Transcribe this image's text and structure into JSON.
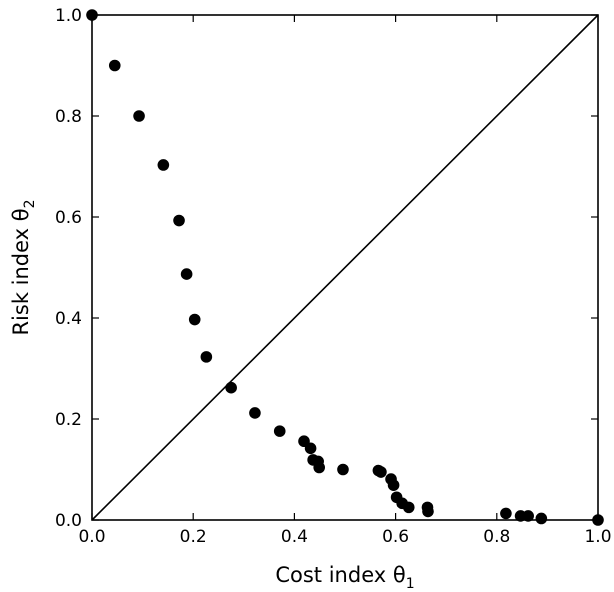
{
  "chart_data": {
    "type": "scatter",
    "title": "",
    "xlabel": {
      "text": "Cost index θ",
      "sub": "1"
    },
    "ylabel": {
      "text": "Risk index θ",
      "sub": "2"
    },
    "xlim": [
      0.0,
      1.0
    ],
    "ylim": [
      0.0,
      1.0
    ],
    "grid": false,
    "x_ticks": [
      "0.0",
      "0.2",
      "0.4",
      "0.6",
      "0.8",
      "1.0"
    ],
    "y_ticks": [
      "0.0",
      "0.2",
      "0.4",
      "0.6",
      "0.8",
      "1.0"
    ],
    "reference_line": {
      "from": [
        0.0,
        0.0
      ],
      "to": [
        1.0,
        1.0
      ]
    },
    "point_color": "#000000",
    "points": [
      [
        0.0,
        1.0
      ],
      [
        0.045,
        0.9
      ],
      [
        0.093,
        0.8
      ],
      [
        0.141,
        0.703
      ],
      [
        0.172,
        0.593
      ],
      [
        0.187,
        0.487
      ],
      [
        0.203,
        0.397
      ],
      [
        0.226,
        0.323
      ],
      [
        0.275,
        0.262
      ],
      [
        0.322,
        0.212
      ],
      [
        0.371,
        0.176
      ],
      [
        0.419,
        0.156
      ],
      [
        0.432,
        0.142
      ],
      [
        0.437,
        0.119
      ],
      [
        0.447,
        0.116
      ],
      [
        0.449,
        0.104
      ],
      [
        0.496,
        0.1
      ],
      [
        0.566,
        0.098
      ],
      [
        0.571,
        0.095
      ],
      [
        0.591,
        0.081
      ],
      [
        0.596,
        0.069
      ],
      [
        0.602,
        0.045
      ],
      [
        0.613,
        0.033
      ],
      [
        0.626,
        0.025
      ],
      [
        0.663,
        0.025
      ],
      [
        0.664,
        0.017
      ],
      [
        0.818,
        0.013
      ],
      [
        0.847,
        0.008
      ],
      [
        0.862,
        0.008
      ],
      [
        0.888,
        0.003
      ],
      [
        1.0,
        0.0
      ]
    ]
  }
}
